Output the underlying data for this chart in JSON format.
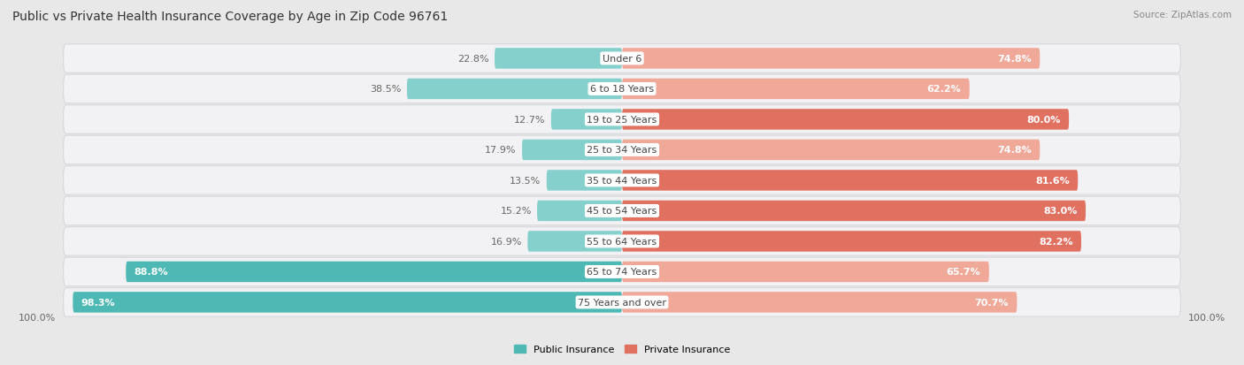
{
  "title": "Public vs Private Health Insurance Coverage by Age in Zip Code 96761",
  "source": "Source: ZipAtlas.com",
  "categories": [
    "Under 6",
    "6 to 18 Years",
    "19 to 25 Years",
    "25 to 34 Years",
    "35 to 44 Years",
    "45 to 54 Years",
    "55 to 64 Years",
    "65 to 74 Years",
    "75 Years and over"
  ],
  "public_values": [
    22.8,
    38.5,
    12.7,
    17.9,
    13.5,
    15.2,
    16.9,
    88.8,
    98.3
  ],
  "private_values": [
    74.8,
    62.2,
    80.0,
    74.8,
    81.6,
    83.0,
    82.2,
    65.7,
    70.7
  ],
  "public_color_dark": "#4db8b4",
  "public_color_light": "#85d0cd",
  "private_color_dark": "#e07060",
  "private_color_light": "#f0a898",
  "bg_color": "#e8e8e8",
  "row_bg_color": "#f2f2f4",
  "row_separator_color": "#d8d8dd",
  "axis_label_left": "100.0%",
  "axis_label_right": "100.0%",
  "legend_public": "Public Insurance",
  "legend_private": "Private Insurance",
  "title_fontsize": 10,
  "source_fontsize": 7.5,
  "label_fontsize": 8,
  "value_fontsize": 8,
  "category_fontsize": 8
}
